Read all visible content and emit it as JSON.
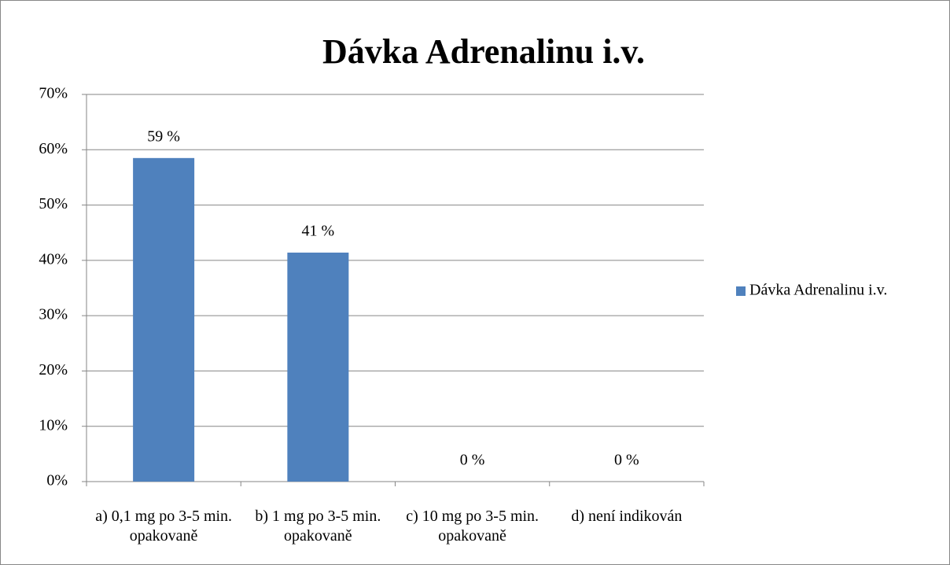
{
  "chart_data": {
    "type": "bar",
    "title": "Dávka Adrenalinu i.v.",
    "categories": [
      "a) 0,1 mg po 3-5 min. opakovaně",
      "b) 1 mg po 3-5 min. opakovaně",
      "c) 10 mg po 3-5 min. opakovaně",
      "d) není indikován"
    ],
    "series": [
      {
        "name": "Dávka Adrenalinu i.v.",
        "color": "#4f81bd",
        "values": [
          58.5,
          41.4,
          0,
          0
        ],
        "value_labels": [
          "59 %",
          "41 %",
          "0 %",
          "0 %"
        ]
      }
    ],
    "ylim": [
      0,
      70
    ],
    "yticks": [
      {
        "value": 0,
        "label": "0%"
      },
      {
        "value": 10,
        "label": "10%"
      },
      {
        "value": 20,
        "label": "20%"
      },
      {
        "value": 30,
        "label": "30%"
      },
      {
        "value": 40,
        "label": "40%"
      },
      {
        "value": 50,
        "label": "50%"
      },
      {
        "value": 60,
        "label": "60%"
      },
      {
        "value": 70,
        "label": "70%"
      }
    ],
    "grid": true,
    "legend": "right"
  }
}
